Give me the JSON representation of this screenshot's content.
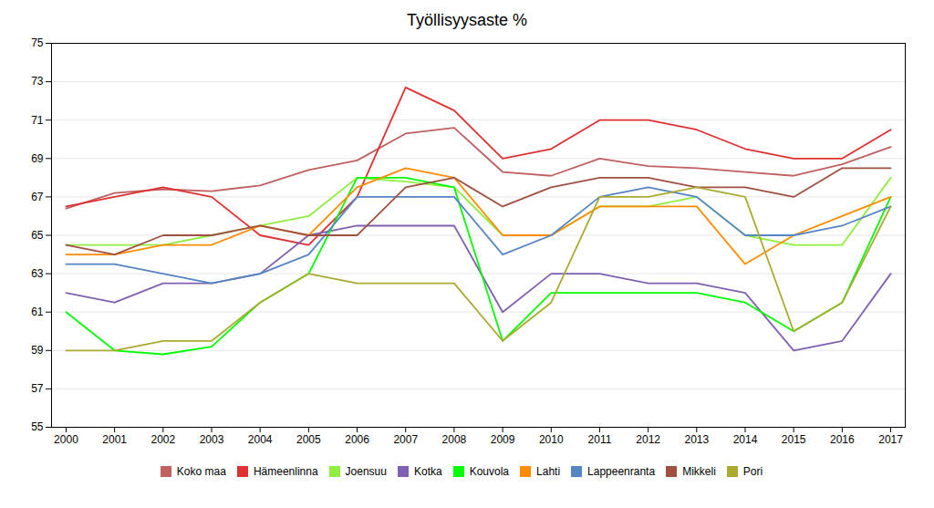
{
  "chart_data": {
    "type": "line",
    "title": "Työllisyysaste %",
    "x": [
      2000,
      2001,
      2002,
      2003,
      2004,
      2005,
      2006,
      2007,
      2008,
      2009,
      2010,
      2011,
      2012,
      2013,
      2014,
      2015,
      2016,
      2017
    ],
    "series": [
      {
        "name": "Koko maa",
        "color": "#C06060",
        "values": [
          66.4,
          67.2,
          67.4,
          67.3,
          67.6,
          68.4,
          68.9,
          70.3,
          70.6,
          68.3,
          68.1,
          69.0,
          68.6,
          68.5,
          68.3,
          68.1,
          68.7,
          69.6
        ]
      },
      {
        "name": "Hämeenlinna",
        "color": "#E03030",
        "values": [
          66.5,
          67.0,
          67.5,
          67.0,
          65.0,
          64.5,
          67.0,
          72.7,
          71.5,
          69.0,
          69.5,
          71.0,
          71.0,
          70.5,
          69.5,
          69.0,
          69.0,
          70.5
        ]
      },
      {
        "name": "Joensuu",
        "color": "#90EE40",
        "values": [
          64.5,
          64.5,
          64.5,
          65.0,
          65.5,
          66.0,
          68.0,
          67.8,
          67.5,
          65.0,
          65.0,
          66.5,
          66.5,
          67.0,
          65.0,
          64.5,
          64.5,
          68.0
        ]
      },
      {
        "name": "Kotka",
        "color": "#8060B0",
        "values": [
          62.0,
          61.5,
          62.5,
          62.5,
          63.0,
          65.0,
          65.5,
          65.5,
          65.5,
          61.0,
          63.0,
          63.0,
          62.5,
          62.5,
          62.0,
          59.0,
          59.5,
          63.0
        ]
      },
      {
        "name": "Kouvola",
        "color": "#00FF00",
        "values": [
          61.0,
          59.0,
          58.8,
          59.2,
          61.5,
          63.0,
          68.0,
          68.0,
          67.5,
          59.5,
          62.0,
          62.0,
          62.0,
          62.0,
          61.5,
          60.0,
          61.5,
          67.0
        ]
      },
      {
        "name": "Lahti",
        "color": "#FF8C00",
        "values": [
          64.0,
          64.0,
          64.5,
          64.5,
          65.5,
          65.0,
          67.5,
          68.5,
          68.0,
          65.0,
          65.0,
          66.5,
          66.5,
          66.5,
          63.5,
          65.0,
          66.0,
          67.0
        ]
      },
      {
        "name": "Lappeenranta",
        "color": "#5585C5",
        "values": [
          63.5,
          63.5,
          63.0,
          62.5,
          63.0,
          64.0,
          67.0,
          67.0,
          67.0,
          64.0,
          65.0,
          67.0,
          67.5,
          67.0,
          65.0,
          65.0,
          65.5,
          66.5
        ]
      },
      {
        "name": "Mikkeli",
        "color": "#A05040",
        "values": [
          64.5,
          64.0,
          65.0,
          65.0,
          65.5,
          65.0,
          65.0,
          67.5,
          68.0,
          66.5,
          67.5,
          68.0,
          68.0,
          67.5,
          67.5,
          67.0,
          68.5,
          68.5
        ]
      },
      {
        "name": "Pori",
        "color": "#AAAA30",
        "values": [
          59.0,
          59.0,
          59.5,
          59.5,
          61.5,
          63.0,
          62.5,
          62.5,
          62.5,
          59.5,
          61.5,
          67.0,
          67.0,
          67.5,
          67.0,
          60.0,
          61.5,
          66.5
        ]
      }
    ],
    "xlim": [
      1999.7,
      2017.3
    ],
    "xticks": [
      2000,
      2001,
      2002,
      2003,
      2004,
      2005,
      2006,
      2007,
      2008,
      2009,
      2010,
      2011,
      2012,
      2013,
      2014,
      2015,
      2016,
      2017
    ],
    "ylim": [
      55,
      75
    ],
    "yticks": [
      55,
      57,
      59,
      61,
      63,
      65,
      67,
      69,
      71,
      73,
      75
    ],
    "grid": true,
    "legend": "bottom"
  }
}
